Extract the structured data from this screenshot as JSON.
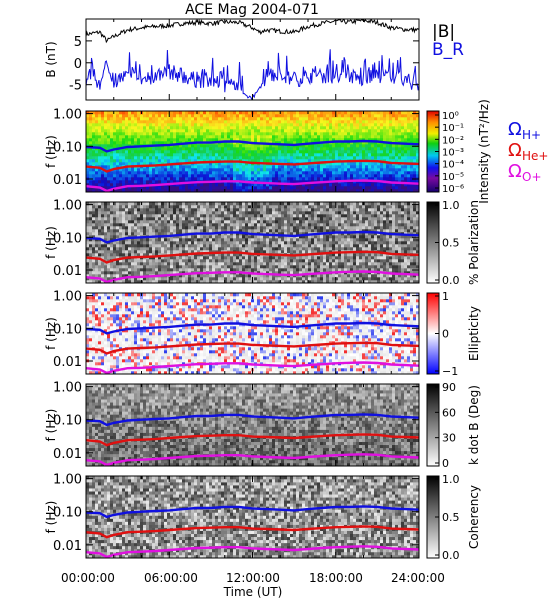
{
  "chart_data": {
    "title": "ACE Mag 2004-071",
    "xlabel": "Time (UT)",
    "x_ticks": [
      "00:00:00",
      "06:00:00",
      "12:00:00",
      "18:00:00",
      "24:00:00"
    ],
    "x_range_hours": [
      0,
      24
    ],
    "panels": [
      {
        "type": "line",
        "ylabel": "B (nT)",
        "ylim": [
          -8.5,
          10
        ],
        "yticks": [
          -5,
          0,
          5
        ],
        "legend": [
          {
            "label": "|B|",
            "color": "#000000"
          },
          {
            "label": "B_R",
            "color": "#1010e0"
          }
        ],
        "series": [
          {
            "name": "|B|",
            "color": "#000000",
            "x": [
              0,
              1,
              1.5,
              2,
              3,
              4,
              5,
              6,
              7,
              8,
              9,
              10,
              11,
              12,
              12.5,
              13,
              14,
              15,
              16,
              17,
              18,
              19,
              20,
              21,
              22,
              23,
              24
            ],
            "y": [
              6.5,
              7,
              5,
              6,
              7.5,
              8,
              8.3,
              8.5,
              9,
              9.2,
              9,
              9.3,
              9.2,
              8,
              7,
              7.5,
              7.2,
              7,
              8.3,
              9,
              9.5,
              9.3,
              9.7,
              9.2,
              8,
              7.6,
              7.5
            ]
          },
          {
            "name": "B_R",
            "color": "#1010e0",
            "x": [
              0,
              0.5,
              1,
              1.5,
              2,
              3,
              4,
              5,
              6,
              7,
              8,
              9,
              10,
              11,
              11.5,
              12,
              12.5,
              13,
              14,
              15,
              16,
              17,
              18,
              19,
              20,
              21,
              22,
              23,
              24
            ],
            "y": [
              -4,
              -2,
              -6,
              0,
              -4,
              -3,
              -4,
              -3,
              -2,
              -3,
              -4,
              -4,
              -5,
              -6,
              -7.5,
              -8,
              -6,
              -3,
              -3,
              -4,
              -3,
              -3,
              -3,
              -3,
              -4,
              -3,
              -3,
              -4,
              -5
            ]
          }
        ]
      },
      {
        "type": "heatmap",
        "ylabel": "f (Hz)",
        "colorbar": {
          "label": "Intensity (nT²/Hz)",
          "ticks": [
            "10⁰",
            "10⁻¹",
            "10⁻²",
            "10⁻³",
            "10⁻⁴",
            "10⁻⁵",
            "10⁻⁶"
          ]
        },
        "gyro_labels": [
          {
            "text": "Ω",
            "sub": "H+",
            "color": "#1010e0"
          },
          {
            "text": "Ω",
            "sub": "He+",
            "color": "#e01010"
          },
          {
            "text": "Ω",
            "sub": "O+",
            "color": "#e010e0"
          }
        ]
      },
      {
        "type": "heatmap",
        "ylabel": "f (Hz)",
        "colorbar": {
          "label": "% Polarization",
          "ticks": [
            "0.0",
            "0.5",
            "1.0"
          ]
        }
      },
      {
        "type": "heatmap",
        "ylabel": "f (Hz)",
        "colorbar": {
          "label": "Ellipticity",
          "ticks": [
            "−1",
            "0",
            "1"
          ]
        }
      },
      {
        "type": "heatmap",
        "ylabel": "f (Hz)",
        "colorbar": {
          "label": "k dot B (Deg)",
          "ticks": [
            "0",
            "30",
            "60",
            "90"
          ]
        }
      },
      {
        "type": "heatmap",
        "ylabel": "f (Hz)",
        "colorbar": {
          "label": "Coherency",
          "ticks": [
            "0.0",
            "0.5",
            "1.0"
          ]
        }
      }
    ],
    "freq_ticks": [
      "1.00",
      "0.10",
      "0.01"
    ],
    "yscale": "log",
    "freq_range_hz": [
      0.004,
      1.2
    ],
    "gyro_lines": [
      {
        "name": "Ω_H+",
        "color": "#1010e0",
        "x": [
          0,
          1,
          1.5,
          2,
          3,
          4,
          5,
          6,
          7,
          8,
          9,
          10,
          11,
          12,
          13,
          14,
          15,
          16,
          17,
          18,
          19,
          20,
          21,
          22,
          23,
          24
        ],
        "y": [
          0.095,
          0.09,
          0.07,
          0.08,
          0.095,
          0.1,
          0.105,
          0.11,
          0.12,
          0.13,
          0.13,
          0.14,
          0.14,
          0.125,
          0.12,
          0.115,
          0.11,
          0.12,
          0.13,
          0.14,
          0.14,
          0.145,
          0.14,
          0.125,
          0.12,
          0.115
        ]
      },
      {
        "name": "Ω_He+",
        "color": "#e01010",
        "x": [
          0,
          1,
          1.5,
          2,
          3,
          4,
          5,
          6,
          7,
          8,
          9,
          10,
          11,
          12,
          13,
          14,
          15,
          16,
          17,
          18,
          19,
          20,
          21,
          22,
          23,
          24
        ],
        "y": [
          0.024,
          0.022,
          0.017,
          0.02,
          0.024,
          0.025,
          0.026,
          0.028,
          0.03,
          0.032,
          0.033,
          0.034,
          0.034,
          0.031,
          0.03,
          0.029,
          0.028,
          0.03,
          0.032,
          0.034,
          0.035,
          0.036,
          0.035,
          0.031,
          0.03,
          0.029
        ]
      },
      {
        "name": "Ω_O+",
        "color": "#e010e0",
        "x": [
          0,
          1,
          1.5,
          2,
          3,
          4,
          5,
          6,
          7,
          8,
          9,
          10,
          11,
          12,
          13,
          14,
          15,
          16,
          17,
          18,
          19,
          20,
          21,
          22,
          23,
          24
        ],
        "y": [
          0.006,
          0.0055,
          0.0043,
          0.005,
          0.006,
          0.0062,
          0.0065,
          0.007,
          0.0075,
          0.008,
          0.0082,
          0.0085,
          0.0085,
          0.0078,
          0.0075,
          0.0072,
          0.007,
          0.0075,
          0.008,
          0.0085,
          0.0088,
          0.009,
          0.0087,
          0.0078,
          0.0075,
          0.0072
        ]
      }
    ]
  }
}
